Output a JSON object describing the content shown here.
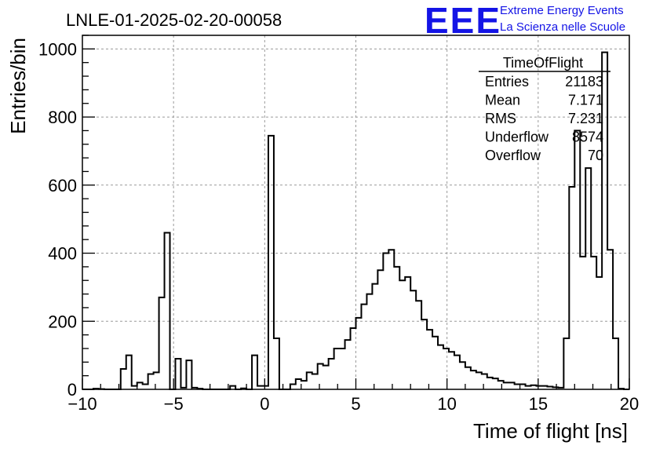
{
  "chart_data": {
    "type": "bar",
    "title": "LNLE-01-2025-02-20-00058",
    "xlabel": "Time of flight [ns]",
    "ylabel": "Entries/bin",
    "xlim": [
      -10,
      20
    ],
    "ylim": [
      0,
      1040
    ],
    "bin_width": 0.3,
    "x_ticks": [
      -10,
      -5,
      0,
      5,
      10,
      15,
      20
    ],
    "y_ticks": [
      0,
      200,
      400,
      600,
      800,
      1000
    ],
    "grid": true,
    "counts": [
      0,
      0,
      2,
      1,
      0,
      0,
      0,
      60,
      100,
      10,
      20,
      15,
      45,
      50,
      270,
      460,
      0,
      90,
      5,
      85,
      5,
      2,
      0,
      0,
      0,
      0,
      0,
      10,
      0,
      3,
      0,
      100,
      10,
      10,
      745,
      150,
      0,
      0,
      15,
      30,
      25,
      50,
      45,
      75,
      70,
      90,
      120,
      120,
      145,
      180,
      210,
      250,
      280,
      310,
      350,
      400,
      410,
      360,
      320,
      330,
      290,
      260,
      205,
      175,
      155,
      130,
      120,
      110,
      100,
      80,
      65,
      55,
      50,
      45,
      35,
      32,
      25,
      20,
      20,
      15,
      15,
      10,
      12,
      10,
      10,
      8,
      6,
      5,
      150,
      595,
      760,
      390,
      650,
      390,
      330,
      990,
      410,
      150,
      2,
      0,
      0,
      0,
      0,
      0,
      0,
      0,
      0,
      0,
      0,
      0,
      0,
      0
    ],
    "stats": {
      "name": "TimeOfFlight",
      "rows": [
        {
          "label": "Entries",
          "value": "21183"
        },
        {
          "label": "Mean",
          "value": "7.171"
        },
        {
          "label": "RMS",
          "value": "7.231"
        },
        {
          "label": "Underflow",
          "value": "8574"
        },
        {
          "label": "Overflow",
          "value": "70"
        }
      ]
    }
  },
  "logo": {
    "mark": "EEE",
    "line1": "Extreme Energy Events",
    "line2": "La Scienza nelle Scuole"
  }
}
